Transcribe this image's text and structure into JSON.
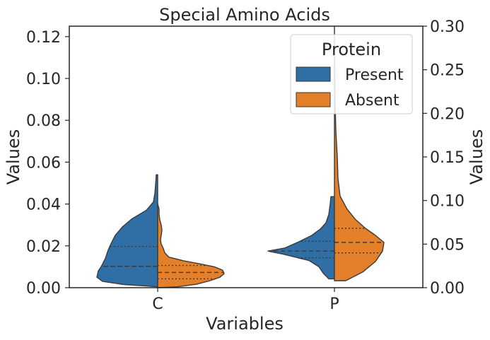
{
  "chart_data": {
    "type": "violin",
    "title": "Special Amino Acids",
    "xlabel": "Variables",
    "ylabel_left": "Values",
    "ylabel_right": "Values",
    "categories": [
      "C",
      "P"
    ],
    "ylim_left": [
      0,
      0.125
    ],
    "yticks_left": [
      "0.00",
      "0.02",
      "0.04",
      "0.06",
      "0.08",
      "0.10",
      "0.12"
    ],
    "ylim_right": [
      0,
      0.3
    ],
    "yticks_right": [
      "0.00",
      "0.05",
      "0.10",
      "0.15",
      "0.20",
      "0.25",
      "0.30"
    ],
    "legend": {
      "title": "Protein",
      "placement": "top-right",
      "entries": [
        {
          "label": "Present",
          "color": "#2f6fa5"
        },
        {
          "label": "Absent",
          "color": "#e5802a"
        }
      ]
    },
    "series": [
      {
        "name": "Present",
        "side": "left",
        "color": "#2f6fa5",
        "axis": "left",
        "violins": [
          {
            "category": "C",
            "profile": [
              [
                0.0,
                0.0
              ],
              [
                0.0005,
                0.02
              ],
              [
                0.0015,
                0.48
              ],
              [
                0.003,
                0.78
              ],
              [
                0.005,
                0.86
              ],
              [
                0.008,
                0.84
              ],
              [
                0.01,
                0.8
              ],
              [
                0.014,
                0.74
              ],
              [
                0.018,
                0.7
              ],
              [
                0.021,
                0.66
              ],
              [
                0.025,
                0.6
              ],
              [
                0.029,
                0.5
              ],
              [
                0.033,
                0.36
              ],
              [
                0.037,
                0.16
              ],
              [
                0.041,
                0.06
              ],
              [
                0.045,
                0.04
              ],
              [
                0.049,
                0.03
              ],
              [
                0.054,
                0.02
              ],
              [
                0.054,
                0.0
              ]
            ],
            "quartiles": [
              0.0102,
              0.0197
            ],
            "median": 0.0102
          },
          {
            "category": "P",
            "profile": [
              [
                0.0042,
                0.0
              ],
              [
                0.0042,
                0.08
              ],
              [
                0.007,
                0.16
              ],
              [
                0.01,
                0.22
              ],
              [
                0.013,
                0.36
              ],
              [
                0.016,
                0.72
              ],
              [
                0.0175,
                0.94
              ],
              [
                0.019,
                0.7
              ],
              [
                0.022,
                0.5
              ],
              [
                0.025,
                0.32
              ],
              [
                0.028,
                0.2
              ],
              [
                0.031,
                0.12
              ],
              [
                0.035,
                0.08
              ],
              [
                0.04,
                0.06
              ],
              [
                0.0435,
                0.05
              ],
              [
                0.0435,
                0.0
              ]
            ],
            "quartiles": [
              0.0143,
              0.0222
            ],
            "median": 0.0175
          }
        ]
      },
      {
        "name": "Absent",
        "side": "right",
        "color": "#e5802a",
        "axis": "right",
        "violins": [
          {
            "category": "C",
            "profile": [
              [
                0.0,
                0.0
              ],
              [
                0.001,
                0.28
              ],
              [
                0.004,
                0.55
              ],
              [
                0.008,
                0.74
              ],
              [
                0.012,
                0.88
              ],
              [
                0.016,
                0.94
              ],
              [
                0.02,
                0.92
              ],
              [
                0.024,
                0.8
              ],
              [
                0.027,
                0.62
              ],
              [
                0.031,
                0.36
              ],
              [
                0.035,
                0.16
              ],
              [
                0.04,
                0.1
              ],
              [
                0.045,
                0.08
              ],
              [
                0.05,
                0.05
              ],
              [
                0.055,
                0.04
              ],
              [
                0.06,
                0.05
              ],
              [
                0.066,
                0.06
              ],
              [
                0.072,
                0.05
              ],
              [
                0.078,
                0.03
              ],
              [
                0.084,
                0.02
              ],
              [
                0.09,
                0.02
              ],
              [
                0.096,
                0.0
              ]
            ],
            "quartiles": [
              0.0102,
              0.0255
            ],
            "median": 0.0175
          },
          {
            "category": "P",
            "profile": [
              [
                0.008,
                0.0
              ],
              [
                0.008,
                0.16
              ],
              [
                0.018,
                0.4
              ],
              [
                0.03,
                0.58
              ],
              [
                0.042,
                0.68
              ],
              [
                0.052,
                0.7
              ],
              [
                0.06,
                0.58
              ],
              [
                0.068,
                0.44
              ],
              [
                0.078,
                0.3
              ],
              [
                0.09,
                0.18
              ],
              [
                0.105,
                0.08
              ],
              [
                0.125,
                0.05
              ],
              [
                0.15,
                0.04
              ],
              [
                0.18,
                0.02
              ],
              [
                0.21,
                0.01
              ],
              [
                0.24,
                0.005
              ],
              [
                0.3,
                0.0
              ]
            ],
            "quartiles": [
              0.04,
              0.068
            ],
            "median": 0.052
          }
        ]
      }
    ]
  }
}
